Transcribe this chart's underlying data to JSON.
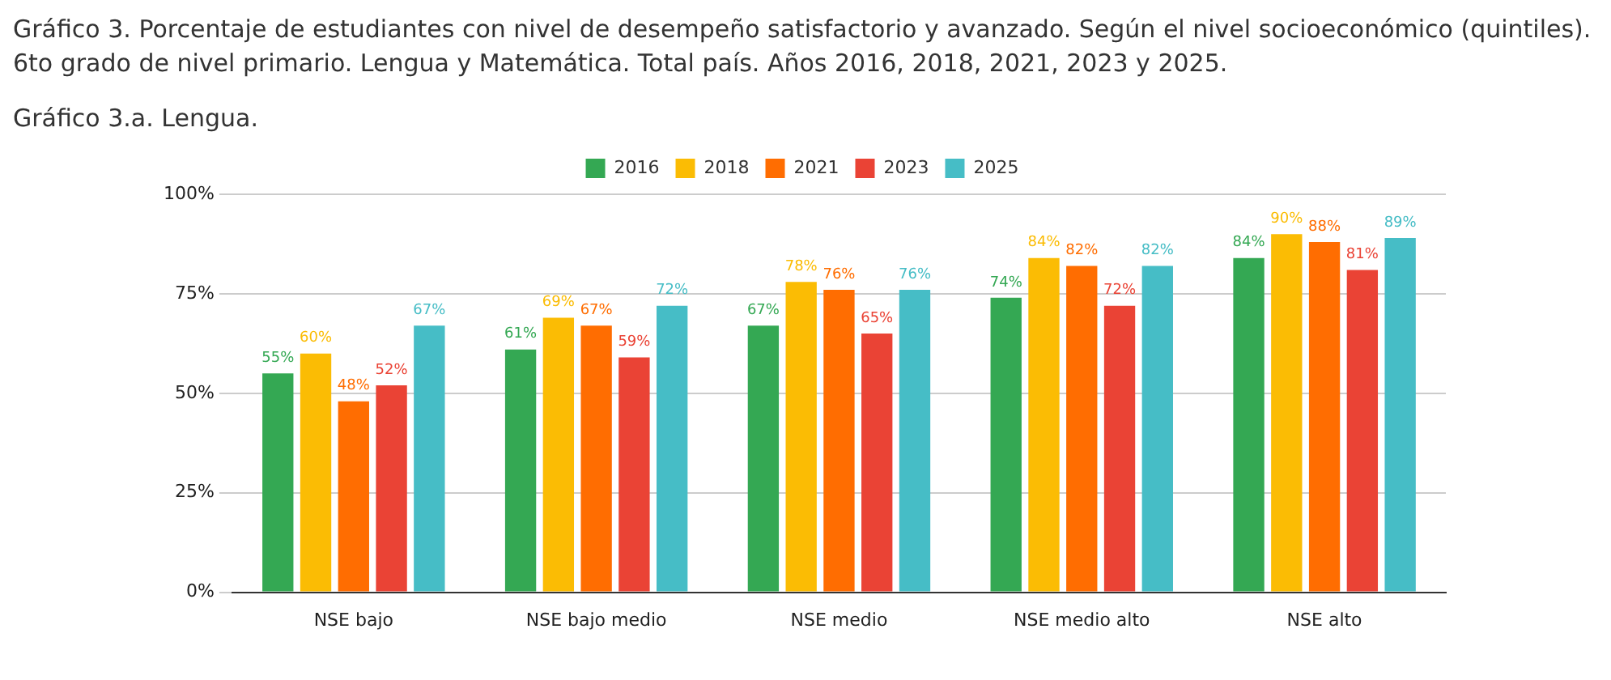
{
  "chart_data": {
    "type": "bar",
    "title": "Gráfico 3. Porcentaje de estudiantes con nivel de desempeño satisfactorio y avanzado. Según el nivel socioeconómico (quintiles). 6to grado de nivel primario. Lengua y Matemática. Total país. Años 2016, 2018, 2021, 2023 y 2025.",
    "subtitle": "Gráfico 3.a. Lengua.",
    "categories": [
      "NSE bajo",
      "NSE bajo medio",
      "NSE medio",
      "NSE medio alto",
      "NSE alto"
    ],
    "series": [
      {
        "name": "2016",
        "color": "#34a853",
        "values": [
          55,
          61,
          67,
          74,
          84
        ],
        "value_labels": [
          "55%",
          "61%",
          "67%",
          "74%",
          "84%"
        ]
      },
      {
        "name": "2018",
        "color": "#fbbc04",
        "values": [
          60,
          69,
          78,
          84,
          90
        ],
        "value_labels": [
          "60%",
          "69%",
          "78%",
          "84%",
          "90%"
        ]
      },
      {
        "name": "2021",
        "color": "#ff6d01",
        "values": [
          48,
          67,
          76,
          82,
          88
        ],
        "value_labels": [
          "48%",
          "67%",
          "76%",
          "82%",
          "88%"
        ]
      },
      {
        "name": "2023",
        "color": "#ea4335",
        "values": [
          52,
          59,
          65,
          72,
          81
        ],
        "value_labels": [
          "52%",
          "59%",
          "65%",
          "72%",
          "81%"
        ]
      },
      {
        "name": "2025",
        "color": "#46bdc6",
        "values": [
          67,
          72,
          76,
          82,
          89
        ],
        "value_labels": [
          "67%",
          "72%",
          "76%",
          "82%",
          "89%"
        ]
      }
    ],
    "ylim": [
      0,
      100
    ],
    "yticks": [
      {
        "value": 0,
        "label": "0%"
      },
      {
        "value": 25,
        "label": "25%"
      },
      {
        "value": 50,
        "label": "50%"
      },
      {
        "value": 75,
        "label": "75%"
      },
      {
        "value": 100,
        "label": "100%"
      }
    ],
    "grid": "y",
    "legend": "top"
  }
}
